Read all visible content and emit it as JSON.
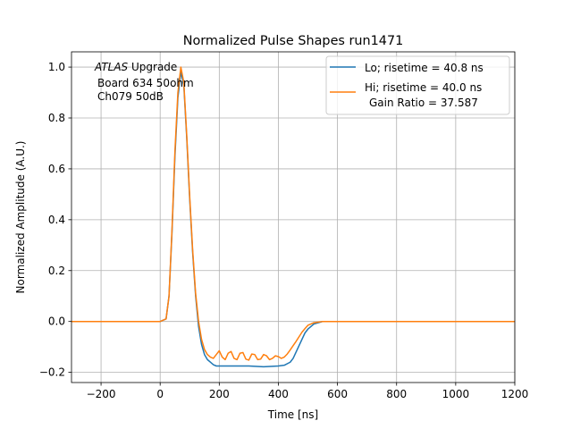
{
  "chart_data": {
    "type": "line",
    "title": "Normalized Pulse Shapes run1471",
    "xlabel": "Time [ns]",
    "ylabel": "Normalized Amplitude (A.U.)",
    "xlim": [
      -300,
      1200
    ],
    "ylim": [
      -0.24,
      1.06
    ],
    "xticks": [
      -200,
      0,
      200,
      400,
      600,
      800,
      1000,
      1200
    ],
    "xtick_labels": [
      "−200",
      "0",
      "200",
      "400",
      "600",
      "800",
      "1000",
      "1200"
    ],
    "yticks": [
      -0.2,
      0.0,
      0.2,
      0.4,
      0.6,
      0.8,
      1.0
    ],
    "ytick_labels": [
      "−0.2",
      "0.0",
      "0.2",
      "0.4",
      "0.6",
      "0.8",
      "1.0"
    ],
    "grid": true,
    "legend_position": "top-right",
    "annotation": {
      "italic": "ATLAS",
      "rest": " Upgrade",
      "line2": "Board 634 50ohm",
      "line3": "Ch079 50dB"
    },
    "series": [
      {
        "name": "Lo; risetime = 40.8 ns",
        "color": "#1f77b4",
        "x": [
          -300,
          -100,
          0,
          20,
          30,
          40,
          50,
          60,
          70,
          80,
          90,
          100,
          110,
          120,
          130,
          140,
          150,
          160,
          170,
          180,
          190,
          200,
          220,
          250,
          300,
          350,
          400,
          420,
          440,
          450,
          460,
          470,
          480,
          490,
          500,
          520,
          550,
          600,
          800,
          1000,
          1200
        ],
        "y": [
          0.0,
          0.0,
          0.0,
          0.01,
          0.1,
          0.35,
          0.65,
          0.88,
          0.98,
          0.93,
          0.72,
          0.48,
          0.27,
          0.1,
          -0.02,
          -0.09,
          -0.13,
          -0.15,
          -0.16,
          -0.17,
          -0.175,
          -0.175,
          -0.175,
          -0.175,
          -0.175,
          -0.178,
          -0.175,
          -0.172,
          -0.16,
          -0.145,
          -0.12,
          -0.095,
          -0.07,
          -0.045,
          -0.03,
          -0.01,
          0.0,
          0.0,
          0.0,
          0.0,
          0.0
        ]
      },
      {
        "name": "Hi; risetime = 40.0 ns",
        "name_line2": "Gain Ratio = 37.587",
        "color": "#ff7f0e",
        "x": [
          -300,
          -100,
          0,
          20,
          30,
          40,
          50,
          60,
          70,
          80,
          90,
          100,
          110,
          120,
          130,
          140,
          150,
          160,
          170,
          180,
          190,
          200,
          210,
          220,
          230,
          240,
          250,
          260,
          270,
          280,
          290,
          300,
          310,
          320,
          330,
          340,
          350,
          360,
          370,
          380,
          390,
          400,
          410,
          420,
          430,
          440,
          450,
          460,
          470,
          480,
          490,
          500,
          520,
          550,
          600,
          800,
          1000,
          1200
        ],
        "y": [
          0.0,
          0.0,
          0.0,
          0.01,
          0.1,
          0.36,
          0.67,
          0.9,
          1.0,
          0.94,
          0.73,
          0.49,
          0.28,
          0.11,
          0.0,
          -0.07,
          -0.11,
          -0.13,
          -0.14,
          -0.145,
          -0.13,
          -0.115,
          -0.14,
          -0.15,
          -0.125,
          -0.118,
          -0.145,
          -0.15,
          -0.125,
          -0.122,
          -0.148,
          -0.152,
          -0.128,
          -0.13,
          -0.15,
          -0.148,
          -0.13,
          -0.135,
          -0.15,
          -0.145,
          -0.135,
          -0.138,
          -0.145,
          -0.14,
          -0.128,
          -0.112,
          -0.095,
          -0.078,
          -0.06,
          -0.042,
          -0.028,
          -0.015,
          -0.005,
          0.0,
          0.0,
          0.0,
          0.0,
          0.0
        ]
      }
    ]
  }
}
